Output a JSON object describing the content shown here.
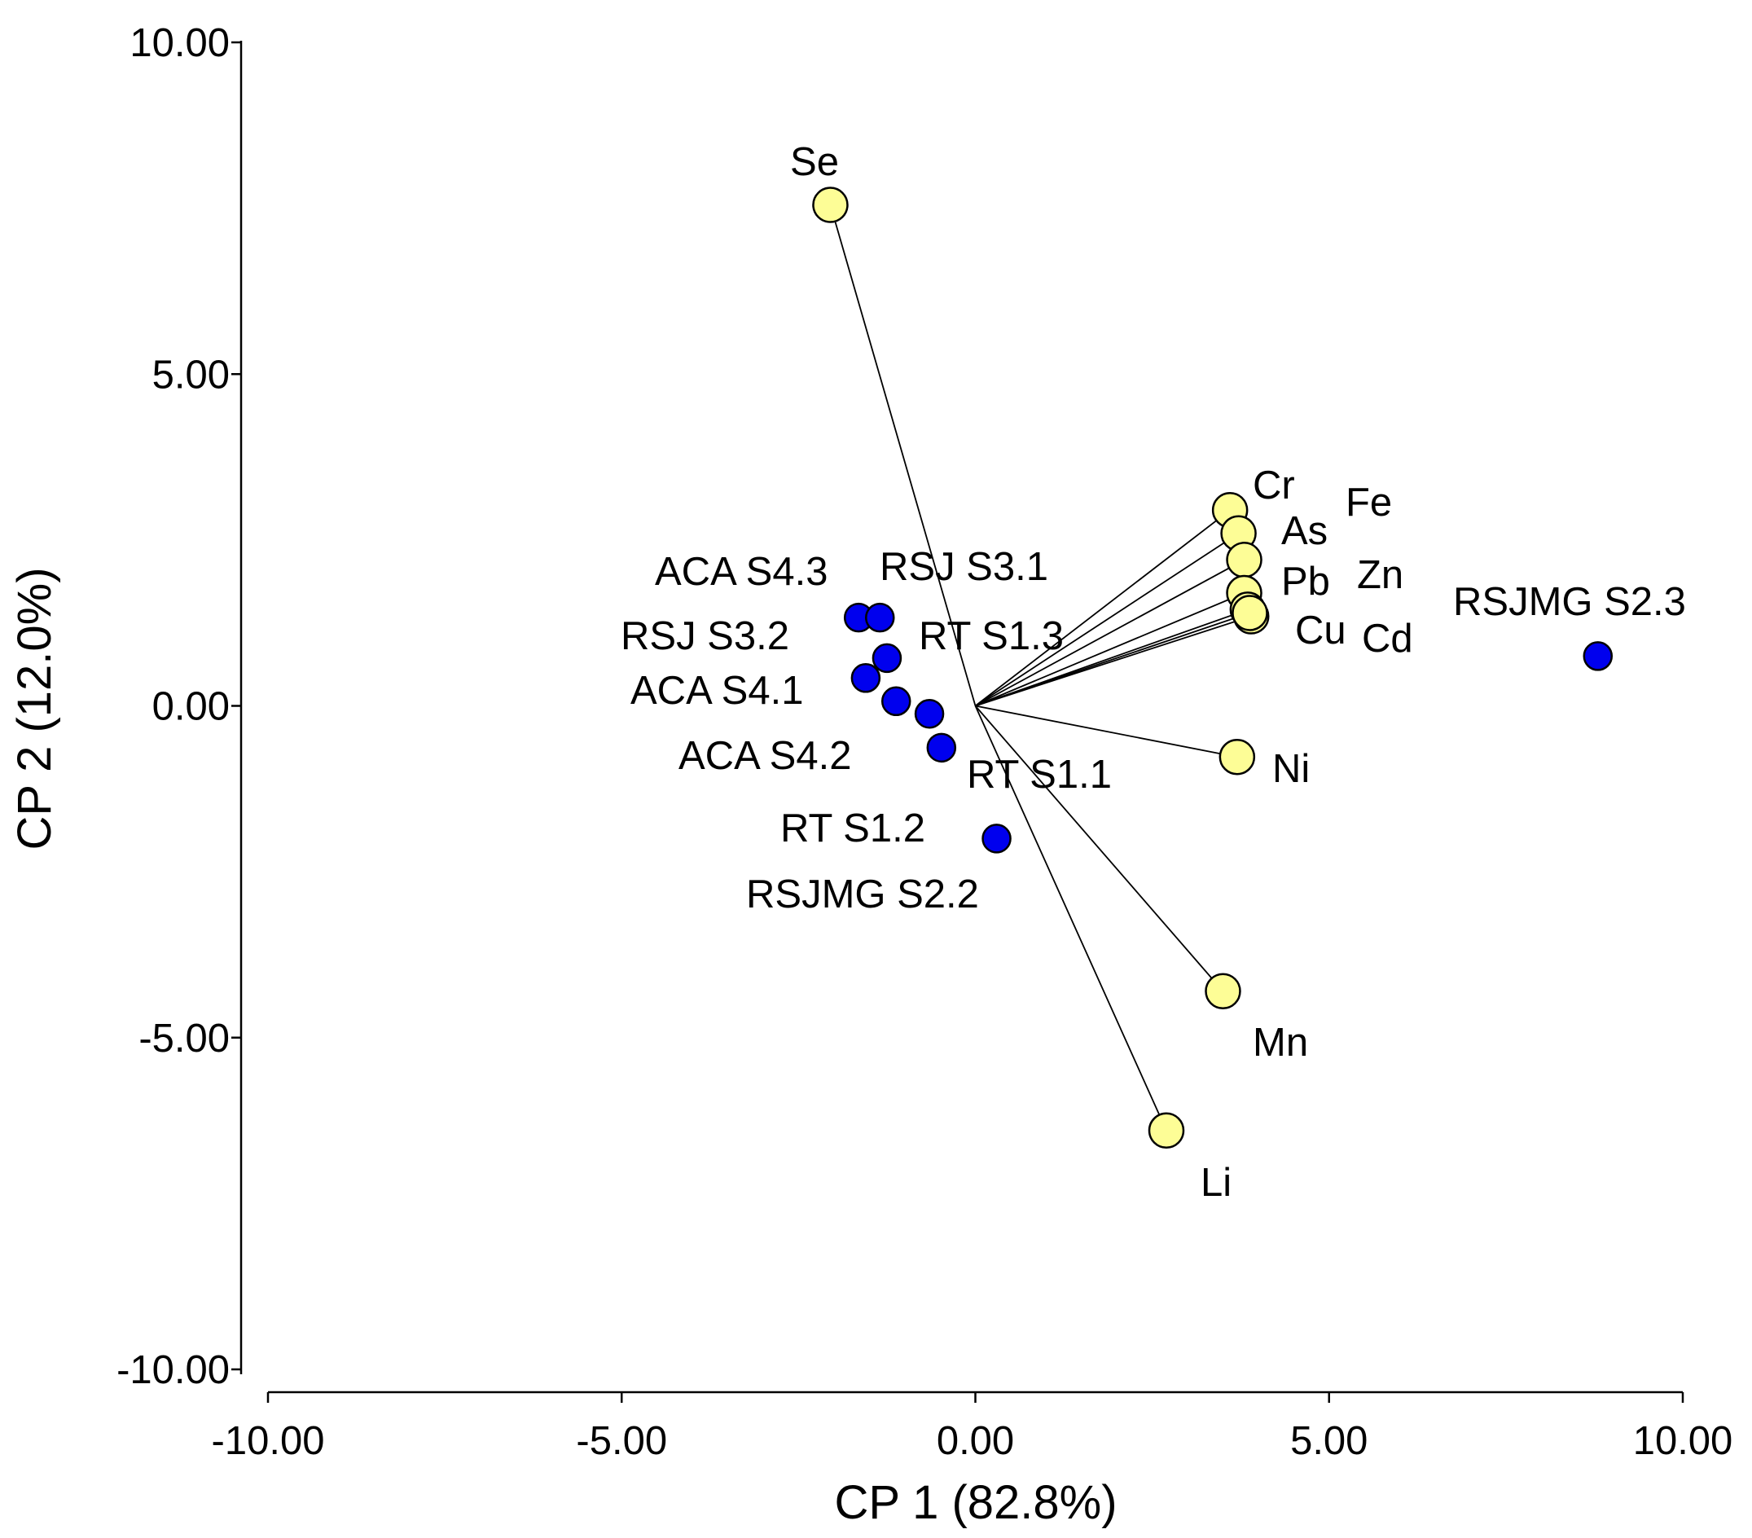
{
  "colors": {
    "background": "#ffffff",
    "axis": "#000000",
    "variable_fill": "#fdfd96",
    "sample_fill": "#0000ee"
  },
  "chart_data": {
    "type": "scatter",
    "title": "",
    "xlabel": "CP 1 (82.8%)",
    "ylabel": "CP 2 (12.0%)",
    "xlim": [
      -10,
      10
    ],
    "ylim": [
      -10,
      10
    ],
    "grid": false,
    "x_ticks": [
      -10,
      -5,
      0,
      5,
      10
    ],
    "y_ticks": [
      -10,
      -5,
      0,
      5,
      10
    ],
    "x_tick_labels": [
      "-10.00",
      "-5.00",
      "0.00",
      "5.00",
      "10.00"
    ],
    "y_tick_labels": [
      "-10.00",
      "-5.00",
      "0.00",
      "5.00",
      "10.00"
    ],
    "series": [
      {
        "name": "Variables",
        "marker": "yellow circle with line to origin",
        "points": [
          {
            "label": "Se",
            "x": -2.05,
            "y": 7.55
          },
          {
            "label": "Cr",
            "x": 3.6,
            "y": 2.95
          },
          {
            "label": "Fe",
            "x": 3.72,
            "y": 2.6
          },
          {
            "label": "As",
            "x": 3.8,
            "y": 2.2
          },
          {
            "label": "Zn",
            "x": 3.8,
            "y": 1.7
          },
          {
            "label": "Pb",
            "x": 3.85,
            "y": 1.45
          },
          {
            "label": "Cd",
            "x": 3.9,
            "y": 1.35
          },
          {
            "label": "Cu",
            "x": 3.88,
            "y": 1.4
          },
          {
            "label": "Ni",
            "x": 3.7,
            "y": -0.77
          },
          {
            "label": "Mn",
            "x": 3.5,
            "y": -4.3
          },
          {
            "label": "Li",
            "x": 2.7,
            "y": -6.4
          }
        ]
      },
      {
        "name": "Samples",
        "marker": "blue circle",
        "points": [
          {
            "label": "ACA S4.3",
            "x": -1.65,
            "y": 1.33
          },
          {
            "label": "RSJ S3.1",
            "x": -1.35,
            "y": 1.33
          },
          {
            "label": "RSJ S3.2",
            "x": -1.25,
            "y": 0.72
          },
          {
            "label": "RT S1.3",
            "x": -1.55,
            "y": 0.42
          },
          {
            "label": "ACA S4.1",
            "x": -1.12,
            "y": 0.07
          },
          {
            "label": "ACA S4.2",
            "x": -0.65,
            "y": -0.12
          },
          {
            "label": "RT S1.1",
            "x": -0.48,
            "y": -0.63
          },
          {
            "label": "RT S1.2",
            "x": 0.3,
            "y": -2.0
          },
          {
            "label": "RSJMG S2.3",
            "x": 8.8,
            "y": 0.75
          },
          {
            "label": "RSJMG S2.2",
            "x": null,
            "y": null
          }
        ]
      }
    ]
  }
}
